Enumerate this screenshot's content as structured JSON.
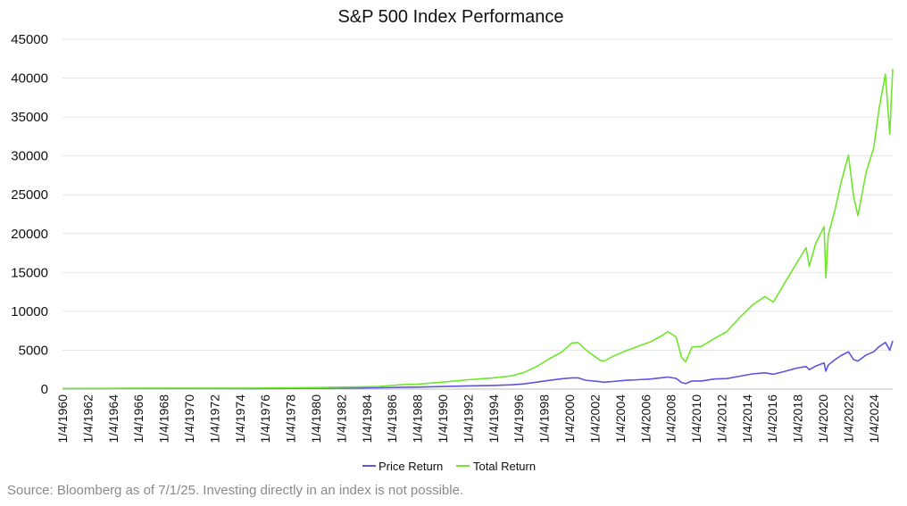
{
  "chart_data": {
    "type": "line",
    "title": "S&P 500 Index Performance",
    "xlabel": "",
    "ylabel": "",
    "ylim": [
      0,
      45000
    ],
    "y_ticks": [
      "0",
      "5000",
      "10000",
      "15000",
      "20000",
      "25000",
      "30000",
      "35000",
      "40000",
      "45000"
    ],
    "x_tick_labels": [
      "1/4/1960",
      "1/4/1962",
      "1/4/1964",
      "1/4/1966",
      "1/4/1968",
      "1/4/1970",
      "1/4/1972",
      "1/4/1974",
      "1/4/1976",
      "1/4/1978",
      "1/4/1980",
      "1/4/1982",
      "1/4/1984",
      "1/4/1986",
      "1/4/1988",
      "1/4/1990",
      "1/4/1992",
      "1/4/1994",
      "1/4/1996",
      "1/4/1998",
      "1/4/2000",
      "1/4/2002",
      "1/4/2004",
      "1/4/2006",
      "1/4/2008",
      "1/4/2010",
      "1/4/2012",
      "1/4/2014",
      "1/4/2016",
      "1/4/2018",
      "1/4/2020",
      "1/4/2022",
      "1/4/2024"
    ],
    "grid": true,
    "legend_position": "bottom-center",
    "x": [
      "1960-01-04",
      "1965-01-04",
      "1970-01-04",
      "1975-01-04",
      "1980-01-04",
      "1983-01-04",
      "1985-01-04",
      "1987-01-04",
      "1988-01-04",
      "1990-01-04",
      "1992-01-04",
      "1994-01-04",
      "1995-06-01",
      "1996-06-01",
      "1997-06-01",
      "1998-06-01",
      "1999-06-01",
      "2000-03-01",
      "2000-09-01",
      "2001-04-01",
      "2002-06-01",
      "2002-10-01",
      "2003-06-01",
      "2004-06-01",
      "2005-06-01",
      "2006-06-01",
      "2007-06-01",
      "2007-10-01",
      "2008-06-01",
      "2008-11-01",
      "2009-03-01",
      "2009-09-01",
      "2010-06-01",
      "2011-06-01",
      "2012-06-01",
      "2013-06-01",
      "2014-06-01",
      "2015-06-01",
      "2016-02-01",
      "2016-12-01",
      "2017-12-01",
      "2018-09-01",
      "2018-12-01",
      "2019-06-01",
      "2020-02-01",
      "2020-03-23",
      "2020-06-01",
      "2020-12-01",
      "2021-06-01",
      "2022-01-01",
      "2022-06-01",
      "2022-10-01",
      "2023-06-01",
      "2024-01-01",
      "2024-06-01",
      "2024-12-01",
      "2025-04-08",
      "2025-07-01"
    ],
    "series": [
      {
        "name": "Price Return",
        "color": "#5b55e0",
        "values": [
          60,
          90,
          92,
          70,
          110,
          140,
          170,
          240,
          250,
          330,
          410,
          470,
          550,
          670,
          900,
          1130,
          1330,
          1450,
          1450,
          1150,
          950,
          880,
          980,
          1130,
          1200,
          1300,
          1480,
          1550,
          1380,
          850,
          700,
          1050,
          1050,
          1300,
          1350,
          1650,
          1950,
          2100,
          1900,
          2250,
          2700,
          2900,
          2500,
          2950,
          3380,
          2300,
          3100,
          3750,
          4300,
          4800,
          3800,
          3600,
          4400,
          4800,
          5450,
          6000,
          5000,
          6200
        ]
      },
      {
        "name": "Total Return",
        "color": "#6ee72a",
        "values": [
          70,
          100,
          110,
          130,
          200,
          280,
          350,
          600,
          620,
          900,
          1200,
          1450,
          1700,
          2150,
          2900,
          3900,
          4800,
          5900,
          6000,
          5100,
          3700,
          3600,
          4200,
          4900,
          5500,
          6100,
          7000,
          7400,
          6700,
          4100,
          3500,
          5400,
          5500,
          6500,
          7400,
          9200,
          10800,
          11900,
          11200,
          13500,
          16200,
          18200,
          15800,
          18700,
          20900,
          14300,
          19800,
          22900,
          26500,
          30100,
          24800,
          22300,
          28000,
          31000,
          36000,
          40500,
          32800,
          41200
        ]
      }
    ]
  },
  "legend": {
    "price_label": "Price Return",
    "total_label": "Total Return"
  },
  "footer": {
    "source": "Source: Bloomberg as of 7/1/25. Investing directly in an index is not possible."
  }
}
